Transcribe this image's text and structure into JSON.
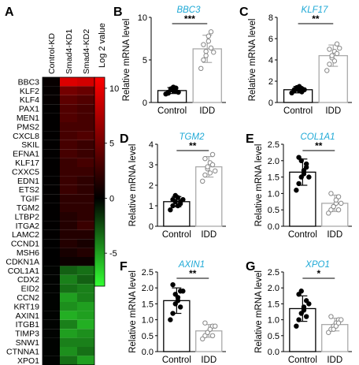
{
  "chart_data": [
    {
      "type": "heatmap",
      "panel_label": "A",
      "columns": [
        "Control-KD",
        "Smad4-KD1",
        "Smad4-KD2"
      ],
      "rows": [
        "BBC3",
        "KLF2",
        "KLF4",
        "PAX1",
        "MEN1",
        "PMS2",
        "CXCL8",
        "SKIL",
        "EFNA1",
        "KLF17",
        "CXXC5",
        "EDN1",
        "ETS2",
        "TGIF",
        "TGM2",
        "LTBP2",
        "ITGA2",
        "LAMC2",
        "CCND1",
        "MSH6",
        "CDKN1A",
        "COL1A1",
        "CDX2",
        "EID2",
        "CCN2",
        "KRT19",
        "AXIN1",
        "ITGB1",
        "TIMP3",
        "SNW1",
        "CTNNA1",
        "XPO1"
      ],
      "values": [
        [
          0.3,
          9.5,
          9.0
        ],
        [
          0.2,
          5.0,
          4.5
        ],
        [
          0.2,
          4.0,
          3.5
        ],
        [
          0.1,
          3.5,
          3.0
        ],
        [
          0.1,
          3.5,
          3.0
        ],
        [
          0.1,
          3.0,
          3.0
        ],
        [
          0.1,
          3.0,
          3.5
        ],
        [
          0.1,
          3.0,
          2.5
        ],
        [
          0.1,
          3.0,
          2.5
        ],
        [
          0.1,
          2.5,
          3.0
        ],
        [
          0.1,
          2.5,
          2.5
        ],
        [
          0.1,
          2.5,
          2.0
        ],
        [
          0.1,
          2.5,
          2.0
        ],
        [
          0.1,
          2.0,
          2.0
        ],
        [
          0.1,
          2.0,
          2.0
        ],
        [
          0.1,
          1.5,
          2.0
        ],
        [
          0.1,
          1.5,
          2.5
        ],
        [
          0.1,
          1.5,
          1.5
        ],
        [
          0.0,
          1.5,
          1.0
        ],
        [
          0.0,
          1.0,
          1.5
        ],
        [
          0.0,
          0.5,
          0.5
        ],
        [
          -0.1,
          -3.0,
          -3.5
        ],
        [
          -0.1,
          -4.0,
          -3.0
        ],
        [
          -0.1,
          -3.5,
          -4.0
        ],
        [
          -0.1,
          -5.0,
          -4.0
        ],
        [
          -0.1,
          -4.5,
          -5.0
        ],
        [
          -0.1,
          -5.5,
          -5.0
        ],
        [
          -0.1,
          -4.0,
          -5.5
        ],
        [
          -0.1,
          -5.0,
          -4.5
        ],
        [
          -0.1,
          -4.0,
          -4.0
        ],
        [
          -0.1,
          -4.5,
          -3.5
        ],
        [
          -0.1,
          -3.5,
          -5.0
        ]
      ],
      "colorbar": {
        "label": "Log 2 value",
        "ticks": [
          10,
          5,
          0,
          -5
        ],
        "range": [
          -8,
          11
        ],
        "colors": {
          "high": "#ff0000",
          "mid": "#000000",
          "low": "#33ff33"
        }
      }
    },
    {
      "type": "scatter",
      "panel_label": "B",
      "title": "BBC3",
      "ylabel": "Relative mRNA level",
      "categories": [
        "Control",
        "IDD"
      ],
      "ylim": [
        0,
        10
      ],
      "yticks": [
        0,
        5,
        10
      ],
      "significance": "***",
      "means": [
        1.4,
        6.3
      ],
      "sd": [
        0.35,
        1.6
      ],
      "points": [
        [
          1.0,
          1.2,
          1.5,
          1.8,
          1.3,
          1.1,
          1.6,
          1.4,
          1.7,
          1.2
        ],
        [
          4.0,
          5.0,
          6.0,
          7.2,
          8.3,
          6.8,
          5.5,
          7.8,
          6.4,
          5.9
        ]
      ]
    },
    {
      "type": "scatter",
      "panel_label": "C",
      "title": "KLF17",
      "ylabel": "Relative mRNA level",
      "categories": [
        "Control",
        "IDD"
      ],
      "ylim": [
        0,
        8
      ],
      "yticks": [
        0,
        2,
        4,
        6,
        8
      ],
      "significance": "**",
      "means": [
        1.2,
        4.4
      ],
      "sd": [
        0.3,
        1.0
      ],
      "points": [
        [
          0.9,
          1.1,
          1.3,
          1.5,
          1.0,
          1.2,
          1.4,
          1.1,
          1.3,
          1.2
        ],
        [
          3.0,
          3.6,
          4.2,
          4.8,
          5.5,
          5.0,
          4.4,
          3.9,
          4.6,
          5.1
        ]
      ]
    },
    {
      "type": "scatter",
      "panel_label": "D",
      "title": "TGM2",
      "ylabel": "Relative mRNA level",
      "categories": [
        "Control",
        "IDD"
      ],
      "ylim": [
        0,
        4
      ],
      "yticks": [
        0,
        1,
        2,
        3,
        4
      ],
      "significance": "**",
      "means": [
        1.2,
        2.9
      ],
      "sd": [
        0.25,
        0.5
      ],
      "points": [
        [
          0.8,
          1.0,
          1.2,
          1.4,
          1.1,
          1.3,
          1.5,
          1.0,
          1.2,
          1.3
        ],
        [
          2.2,
          2.5,
          2.8,
          3.1,
          3.5,
          3.3,
          2.9,
          2.6,
          3.0,
          2.7
        ]
      ]
    },
    {
      "type": "scatter",
      "panel_label": "E",
      "title": "COL1A1",
      "ylabel": "Relative mRNA level",
      "categories": [
        "Control",
        "IDD"
      ],
      "ylim": [
        0,
        2.5
      ],
      "yticks": [
        0.0,
        0.5,
        1.0,
        1.5,
        2.0,
        2.5
      ],
      "significance": "**",
      "means": [
        1.65,
        0.7
      ],
      "sd": [
        0.4,
        0.25
      ],
      "points": [
        [
          1.1,
          1.3,
          1.5,
          1.7,
          1.9,
          2.1,
          2.0,
          1.6,
          1.8,
          1.5
        ],
        [
          0.4,
          0.5,
          0.6,
          0.7,
          0.9,
          1.0,
          0.6,
          0.8,
          0.5,
          0.7
        ]
      ]
    },
    {
      "type": "scatter",
      "panel_label": "F",
      "title": "AXIN1",
      "ylabel": "Relative mRNA level",
      "categories": [
        "Control",
        "IDD"
      ],
      "ylim": [
        0,
        2.5
      ],
      "yticks": [
        0.0,
        0.5,
        1.0,
        1.5,
        2.0,
        2.5
      ],
      "significance": "**",
      "means": [
        1.6,
        0.65
      ],
      "sd": [
        0.4,
        0.2
      ],
      "points": [
        [
          1.0,
          1.2,
          1.5,
          1.7,
          1.9,
          2.1,
          1.8,
          1.6,
          1.4,
          1.9
        ],
        [
          0.4,
          0.5,
          0.6,
          0.7,
          0.8,
          0.9,
          0.6,
          0.7,
          0.5,
          0.8
        ]
      ]
    },
    {
      "type": "scatter",
      "panel_label": "G",
      "title": "XPO1",
      "ylabel": "Relative mRNA level",
      "categories": [
        "Control",
        "IDD"
      ],
      "ylim": [
        0,
        2.5
      ],
      "yticks": [
        0.0,
        0.5,
        1.0,
        1.5,
        2.0,
        2.5
      ],
      "significance": "*",
      "means": [
        1.35,
        0.85
      ],
      "sd": [
        0.4,
        0.2
      ],
      "points": [
        [
          0.8,
          1.0,
          1.2,
          1.4,
          1.6,
          1.8,
          1.9,
          1.3,
          1.1,
          1.5
        ],
        [
          0.6,
          0.7,
          0.8,
          0.9,
          1.0,
          1.1,
          0.7,
          0.8,
          0.9,
          1.0
        ]
      ]
    }
  ]
}
